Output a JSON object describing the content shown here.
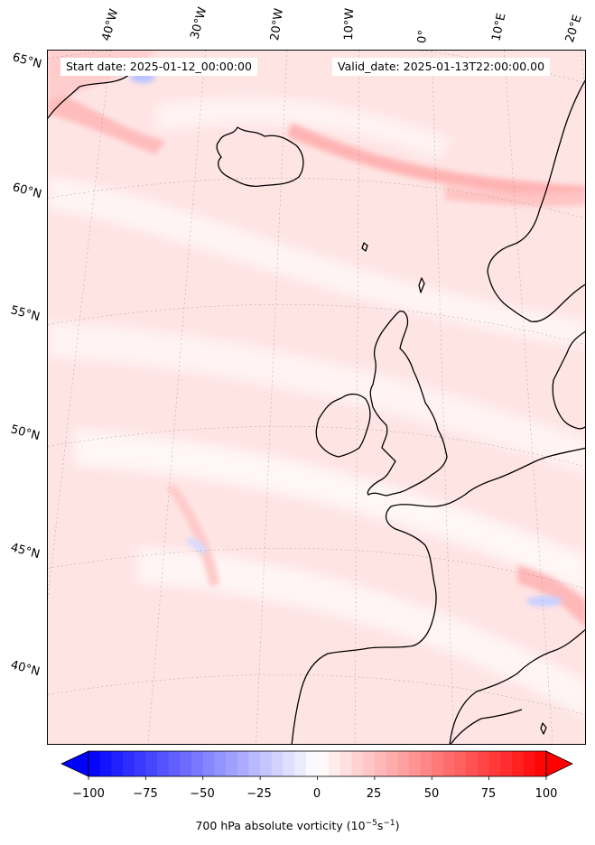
{
  "header": {
    "start_date": "Start date: 2025-01-12_00:00:00",
    "valid_date": "Valid_date: 2025-01-13T22:00:00.00"
  },
  "lon_labels": [
    "40°W",
    "30°W",
    "20°W",
    "10°W",
    "0°",
    "10°E",
    "20°E"
  ],
  "lat_labels": [
    "65°N",
    "60°N",
    "55°N",
    "50°N",
    "45°N",
    "40°N"
  ],
  "colorbar": {
    "ticks": [
      "−100",
      "−75",
      "−50",
      "−25",
      "0",
      "25",
      "50",
      "75",
      "100"
    ],
    "label_main": "700 hPa absolute vorticity (10",
    "label_exp1": "−5",
    "label_mid": "s",
    "label_exp2": "−1",
    "label_end": ")",
    "min": -100,
    "max": 100,
    "extend": "both",
    "cmap": "bwr",
    "color_min": "#0000ff",
    "color_mid": "#ffffff",
    "color_max": "#ff0000"
  },
  "map": {
    "background_color": "#ffe6e6",
    "coastline_color": "#000000",
    "gridline_style": "dotted"
  }
}
